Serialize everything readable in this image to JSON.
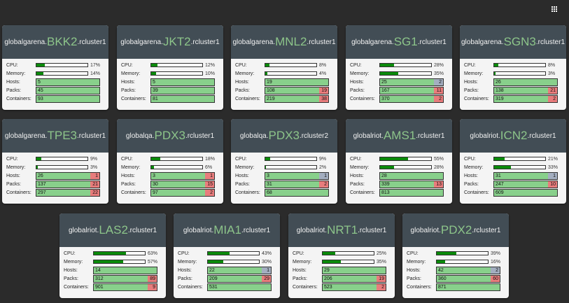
{
  "toolbar": {
    "menu_icon": "apps-grid-icon"
  },
  "labels": {
    "cpu": "CPU:",
    "memory": "Memory:",
    "hosts": "Hosts:",
    "packs": "Packs:",
    "containers": "Containers:"
  },
  "clusters": [
    {
      "prefix": "globalgarena.",
      "dc": "BKK2",
      "suffix": ".rcluster1",
      "cpu": {
        "value": 17,
        "text": "17%"
      },
      "memory": {
        "value": 14,
        "text": "14%"
      },
      "hosts": {
        "ok": "5",
        "bad": "",
        "warn": ""
      },
      "packs": {
        "ok": "45",
        "bad": "",
        "warn": ""
      },
      "containers": {
        "ok": "93",
        "bad": "",
        "warn": ""
      }
    },
    {
      "prefix": "globalgarena.",
      "dc": "JKT2",
      "suffix": ".rcluster1",
      "cpu": {
        "value": 12,
        "text": "12%"
      },
      "memory": {
        "value": 10,
        "text": "10%"
      },
      "hosts": {
        "ok": "5",
        "bad": "",
        "warn": ""
      },
      "packs": {
        "ok": "39",
        "bad": "",
        "warn": ""
      },
      "containers": {
        "ok": "81",
        "bad": "",
        "warn": ""
      }
    },
    {
      "prefix": "globalgarena.",
      "dc": "MNL2",
      "suffix": ".rcluster1",
      "cpu": {
        "value": 8,
        "text": "8%"
      },
      "memory": {
        "value": 4,
        "text": "4%"
      },
      "hosts": {
        "ok": "19",
        "bad": "",
        "warn": ""
      },
      "packs": {
        "ok": "108",
        "bad": "19",
        "warn": ""
      },
      "containers": {
        "ok": "219",
        "bad": "38",
        "warn": ""
      }
    },
    {
      "prefix": "globalgarena.",
      "dc": "SG1",
      "suffix": ".rcluster1",
      "cpu": {
        "value": 28,
        "text": "28%"
      },
      "memory": {
        "value": 35,
        "text": "35%"
      },
      "hosts": {
        "ok": "25",
        "bad": "",
        "warn": "2"
      },
      "packs": {
        "ok": "167",
        "bad": "11",
        "warn": ""
      },
      "containers": {
        "ok": "370",
        "bad": "2",
        "warn": ""
      }
    },
    {
      "prefix": "globalgarena.",
      "dc": "SGN3",
      "suffix": ".rcluster1",
      "cpu": {
        "value": 8,
        "text": "8%"
      },
      "memory": {
        "value": 3,
        "text": "3%"
      },
      "hosts": {
        "ok": "26",
        "bad": "",
        "warn": ""
      },
      "packs": {
        "ok": "138",
        "bad": "21",
        "warn": ""
      },
      "containers": {
        "ok": "319",
        "bad": "2",
        "warn": ""
      }
    },
    {
      "prefix": "globalgarena.",
      "dc": "TPE3",
      "suffix": ".rcluster1",
      "cpu": {
        "value": 9,
        "text": "9%"
      },
      "memory": {
        "value": 3,
        "text": "3%"
      },
      "hosts": {
        "ok": "26",
        "bad": "1",
        "warn": ""
      },
      "packs": {
        "ok": "137",
        "bad": "21",
        "warn": ""
      },
      "containers": {
        "ok": "297",
        "bad": "22",
        "warn": ""
      }
    },
    {
      "prefix": "globalqa.",
      "dc": "PDX3",
      "suffix": ".rcluster1",
      "cpu": {
        "value": 18,
        "text": "18%"
      },
      "memory": {
        "value": 6,
        "text": "6%"
      },
      "hosts": {
        "ok": "3",
        "bad": "1",
        "warn": ""
      },
      "packs": {
        "ok": "30",
        "bad": "15",
        "warn": ""
      },
      "containers": {
        "ok": "97",
        "bad": "2",
        "warn": ""
      }
    },
    {
      "prefix": "globalqa.",
      "dc": "PDX3",
      "suffix": ".rcluster2",
      "cpu": {
        "value": 9,
        "text": "9%"
      },
      "memory": {
        "value": 2,
        "text": "2%"
      },
      "hosts": {
        "ok": "3",
        "bad": "",
        "warn": "1"
      },
      "packs": {
        "ok": "31",
        "bad": "2",
        "warn": ""
      },
      "containers": {
        "ok": "68",
        "bad": "",
        "warn": ""
      }
    },
    {
      "prefix": "globalriot.",
      "dc": "AMS1",
      "suffix": ".rcluster1",
      "cpu": {
        "value": 55,
        "text": "55%"
      },
      "memory": {
        "value": 28,
        "text": "28%"
      },
      "hosts": {
        "ok": "28",
        "bad": "",
        "warn": ""
      },
      "packs": {
        "ok": "339",
        "bad": "13",
        "warn": ""
      },
      "containers": {
        "ok": "813",
        "bad": "",
        "warn": ""
      }
    },
    {
      "prefix": "globalriot.",
      "dc": "ICN2",
      "suffix": ".rcluster1",
      "cpu": {
        "value": 21,
        "text": "21%"
      },
      "memory": {
        "value": 33,
        "text": "33%"
      },
      "hosts": {
        "ok": "31",
        "bad": "",
        "warn": "1"
      },
      "packs": {
        "ok": "247",
        "bad": "10",
        "warn": ""
      },
      "containers": {
        "ok": "609",
        "bad": "",
        "warn": ""
      }
    },
    {
      "prefix": "globalriot.",
      "dc": "LAS2",
      "suffix": ".rcluster1",
      "cpu": {
        "value": 63,
        "text": "63%"
      },
      "memory": {
        "value": 57,
        "text": "57%"
      },
      "hosts": {
        "ok": "14",
        "bad": "",
        "warn": ""
      },
      "packs": {
        "ok": "312",
        "bad": "89",
        "warn": ""
      },
      "containers": {
        "ok": "901",
        "bad": "9",
        "warn": ""
      }
    },
    {
      "prefix": "globalriot.",
      "dc": "MIA1",
      "suffix": ".rcluster1",
      "cpu": {
        "value": 43,
        "text": "43%"
      },
      "memory": {
        "value": 30,
        "text": "30%"
      },
      "hosts": {
        "ok": "22",
        "bad": "",
        "warn": "1"
      },
      "packs": {
        "ok": "209",
        "bad": "29",
        "warn": ""
      },
      "containers": {
        "ok": "531",
        "bad": "",
        "warn": ""
      }
    },
    {
      "prefix": "globalriot.",
      "dc": "NRT1",
      "suffix": ".rcluster1",
      "cpu": {
        "value": 25,
        "text": "25%"
      },
      "memory": {
        "value": 35,
        "text": "35%"
      },
      "hosts": {
        "ok": "29",
        "bad": "",
        "warn": ""
      },
      "packs": {
        "ok": "206",
        "bad": "19",
        "warn": ""
      },
      "containers": {
        "ok": "523",
        "bad": "2",
        "warn": ""
      }
    },
    {
      "prefix": "globalriot.",
      "dc": "PDX2",
      "suffix": ".rcluster1",
      "cpu": {
        "value": 39,
        "text": "39%"
      },
      "memory": {
        "value": 16,
        "text": "16%"
      },
      "hosts": {
        "ok": "42",
        "bad": "",
        "warn": "2"
      },
      "packs": {
        "ok": "360",
        "bad": "60",
        "warn": ""
      },
      "containers": {
        "ok": "871",
        "bad": "",
        "warn": ""
      }
    }
  ]
}
